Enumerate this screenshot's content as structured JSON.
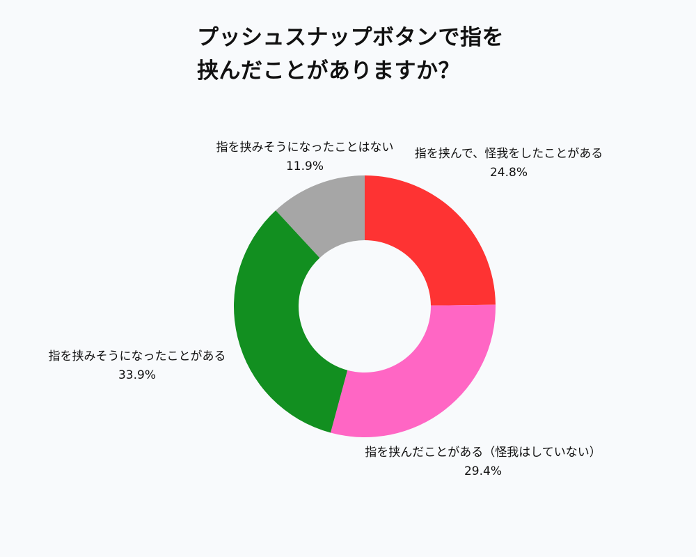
{
  "chart_data": {
    "type": "pie",
    "donut": true,
    "title": "プッシュスナップボタンで指を\n挟んだことがありますか？",
    "slices": [
      {
        "label": "指を挟んで、怪我をしたことがある",
        "value": 24.8,
        "display": "24.8%",
        "color": "#fe3333"
      },
      {
        "label": "指を挟んだことがある（怪我はしていない）",
        "value": 29.4,
        "display": "29.4%",
        "color": "#ff66c4"
      },
      {
        "label": "指を挟みそうになったことがある",
        "value": 33.9,
        "display": "33.9%",
        "color": "#128f20"
      },
      {
        "label": "指を挟みそうになったことはない",
        "value": 11.9,
        "display": "11.9%",
        "color": "#a6a6a6"
      }
    ],
    "legend": "none",
    "labels_outside": true
  }
}
